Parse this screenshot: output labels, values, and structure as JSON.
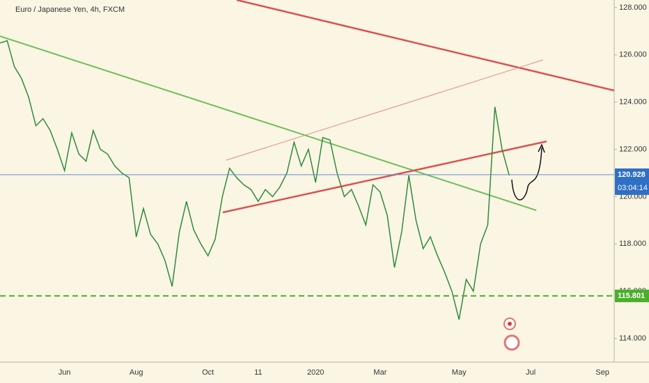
{
  "chart_data": {
    "type": "line",
    "title": "Euro / Japanese Yen, 4h, FXCM",
    "categories": [
      null,
      null,
      null,
      null,
      null,
      null,
      null,
      null,
      null,
      "Jun",
      null,
      null,
      null,
      null,
      null,
      null,
      null,
      null,
      null,
      "Aug",
      null,
      null,
      null,
      null,
      null,
      null,
      null,
      null,
      null,
      "Oct",
      null,
      null,
      null,
      null,
      null,
      null,
      "11",
      null,
      null,
      null,
      null,
      null,
      null,
      null,
      "2020",
      null,
      null,
      null,
      null,
      null,
      null,
      null,
      null,
      "Mar",
      null,
      null,
      null,
      null,
      null,
      null,
      null,
      null,
      null,
      null,
      "May",
      null,
      null,
      null,
      null,
      null,
      null,
      null,
      null,
      null,
      "Jul",
      null,
      null,
      null,
      null,
      null,
      null,
      null,
      null,
      null,
      "Sep",
      null
    ],
    "values": [
      126.5,
      126.6,
      125.5,
      125.0,
      124.2,
      123.0,
      123.3,
      122.8,
      122.0,
      121.1,
      122.7,
      121.8,
      121.5,
      122.8,
      122.0,
      121.8,
      121.3,
      121.0,
      120.8,
      118.3,
      119.5,
      118.4,
      118.0,
      117.3,
      116.2,
      118.5,
      119.8,
      118.6,
      118.0,
      117.5,
      118.2,
      120.0,
      121.2,
      120.8,
      120.5,
      120.3,
      119.8,
      120.3,
      120.0,
      120.4,
      121.0,
      122.3,
      121.3,
      122.0,
      120.6,
      122.5,
      122.4,
      121.0,
      120.0,
      120.3,
      119.6,
      118.8,
      120.5,
      120.2,
      119.2,
      117.0,
      118.5,
      120.9,
      119.0,
      117.8,
      118.3,
      117.5,
      116.8,
      116.0,
      114.8,
      116.5,
      116.0,
      118.0,
      118.8,
      123.8,
      122.0,
      120.9,
      null,
      null,
      null,
      null,
      null,
      null,
      null,
      null,
      null,
      null,
      null,
      null,
      null,
      null
    ],
    "color": "#2e8b3a",
    "ylim": [
      113,
      128.32
    ],
    "yticks": [
      {
        "value": 114,
        "label": "114.000"
      },
      {
        "value": 116,
        "label": "116.000"
      },
      {
        "value": 118,
        "label": "118.000"
      },
      {
        "value": 120,
        "label": "120.000"
      },
      {
        "value": 122,
        "label": "122.000"
      },
      {
        "value": 124,
        "label": "124.000"
      },
      {
        "value": 126,
        "label": "126.000"
      },
      {
        "value": 128,
        "label": "128.000"
      }
    ],
    "last_price": {
      "value": 120.928,
      "label": "120.928"
    },
    "countdown": "03:04:14",
    "support": {
      "value": 115.801,
      "label": "115.801"
    }
  }
}
